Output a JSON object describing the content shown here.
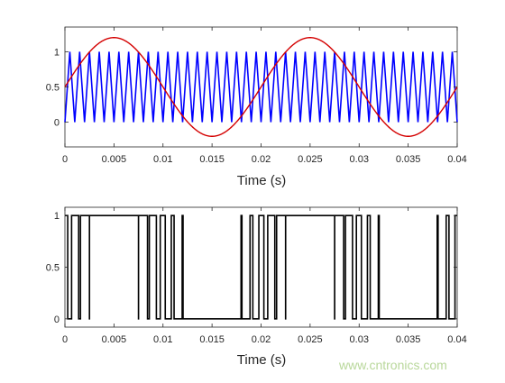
{
  "watermark": "www.cntronics.com",
  "chart_data": [
    {
      "type": "line",
      "xlabel": "Time (s)",
      "ylabel": "",
      "xlim": [
        0,
        0.04
      ],
      "ylim": [
        -0.35,
        1.35
      ],
      "xticks": [
        "0",
        "0.005",
        "0.01",
        "0.015",
        "0.02",
        "0.025",
        "0.03",
        "0.035",
        "0.04"
      ],
      "yticks": [
        "0",
        "0.5",
        "1"
      ],
      "grid": false,
      "series": [
        {
          "kind": "triangle",
          "color": "#0000ff",
          "min": 0,
          "max": 1,
          "frequency_hz": 1000
        },
        {
          "kind": "sine",
          "color": "#d40000",
          "offset": 0.5,
          "amplitude": 0.7,
          "frequency_hz": 50
        }
      ]
    },
    {
      "type": "line",
      "xlabel": "Time (s)",
      "ylabel": "",
      "xlim": [
        0,
        0.04
      ],
      "ylim": [
        -0.08,
        1.08
      ],
      "xticks": [
        "0",
        "0.005",
        "0.01",
        "0.015",
        "0.02",
        "0.025",
        "0.03",
        "0.035",
        "0.04"
      ],
      "yticks": [
        "0",
        "0.5",
        "1"
      ],
      "grid": false,
      "series": [
        {
          "kind": "pwm",
          "color": "#000000",
          "description_values": "PWM output = 1 where sine reference > triangle carrier, else 0"
        }
      ]
    }
  ]
}
